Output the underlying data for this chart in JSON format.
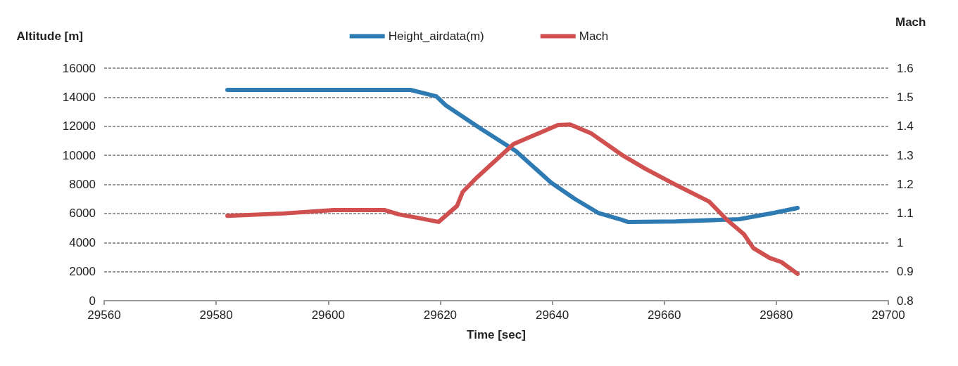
{
  "chart_data": {
    "type": "line",
    "xlabel": "Time [sec]",
    "ylabel": "Altitude [m]",
    "y2label": "Mach",
    "xlim": [
      29560,
      29700
    ],
    "xticks": [
      29560,
      29580,
      29600,
      29620,
      29640,
      29660,
      29680,
      29700
    ],
    "ylim": [
      0,
      16000
    ],
    "yticks": [
      0,
      2000,
      4000,
      6000,
      8000,
      10000,
      12000,
      14000,
      16000
    ],
    "y2lim": [
      0.8,
      1.6
    ],
    "y2ticks": [
      0.8,
      0.9,
      1,
      1.1,
      1.2,
      1.3,
      1.4,
      1.5,
      1.6
    ],
    "grid": "y",
    "legend": "top",
    "marker": "none",
    "line_style": "solid",
    "series": [
      {
        "name": "Height_airdata(m)",
        "color": "#2e7bb4",
        "x": [
          29582,
          29614.7,
          29619.3,
          29621,
          29627.2,
          29633.5,
          29639.8,
          29644,
          29648.2,
          29652.4,
          29653.6,
          29662,
          29673.4,
          29679.6,
          29683.8
        ],
        "values": [
          14500,
          14500,
          14060,
          13440,
          11840,
          10300,
          8120,
          7010,
          6040,
          5560,
          5410,
          5450,
          5610,
          6040,
          6380
        ]
      },
      {
        "name": "Mach",
        "color": "#d05050",
        "axis": "y2",
        "x": [
          29582,
          29592,
          29601,
          29610,
          29612.6,
          29616,
          29619.7,
          29623,
          29624,
          29626.5,
          29631,
          29633.1,
          29641,
          29643.2,
          29647,
          29652.4,
          29656.6,
          29662,
          29668,
          29671.2,
          29674.2,
          29675.9,
          29678.8,
          29680.9,
          29683.8
        ],
        "values": [
          1.092,
          1.1,
          1.112,
          1.112,
          1.097,
          1.085,
          1.071,
          1.126,
          1.174,
          1.223,
          1.302,
          1.339,
          1.404,
          1.406,
          1.375,
          1.302,
          1.254,
          1.199,
          1.141,
          1.078,
          1.029,
          0.981,
          0.947,
          0.933,
          0.892
        ]
      }
    ]
  }
}
